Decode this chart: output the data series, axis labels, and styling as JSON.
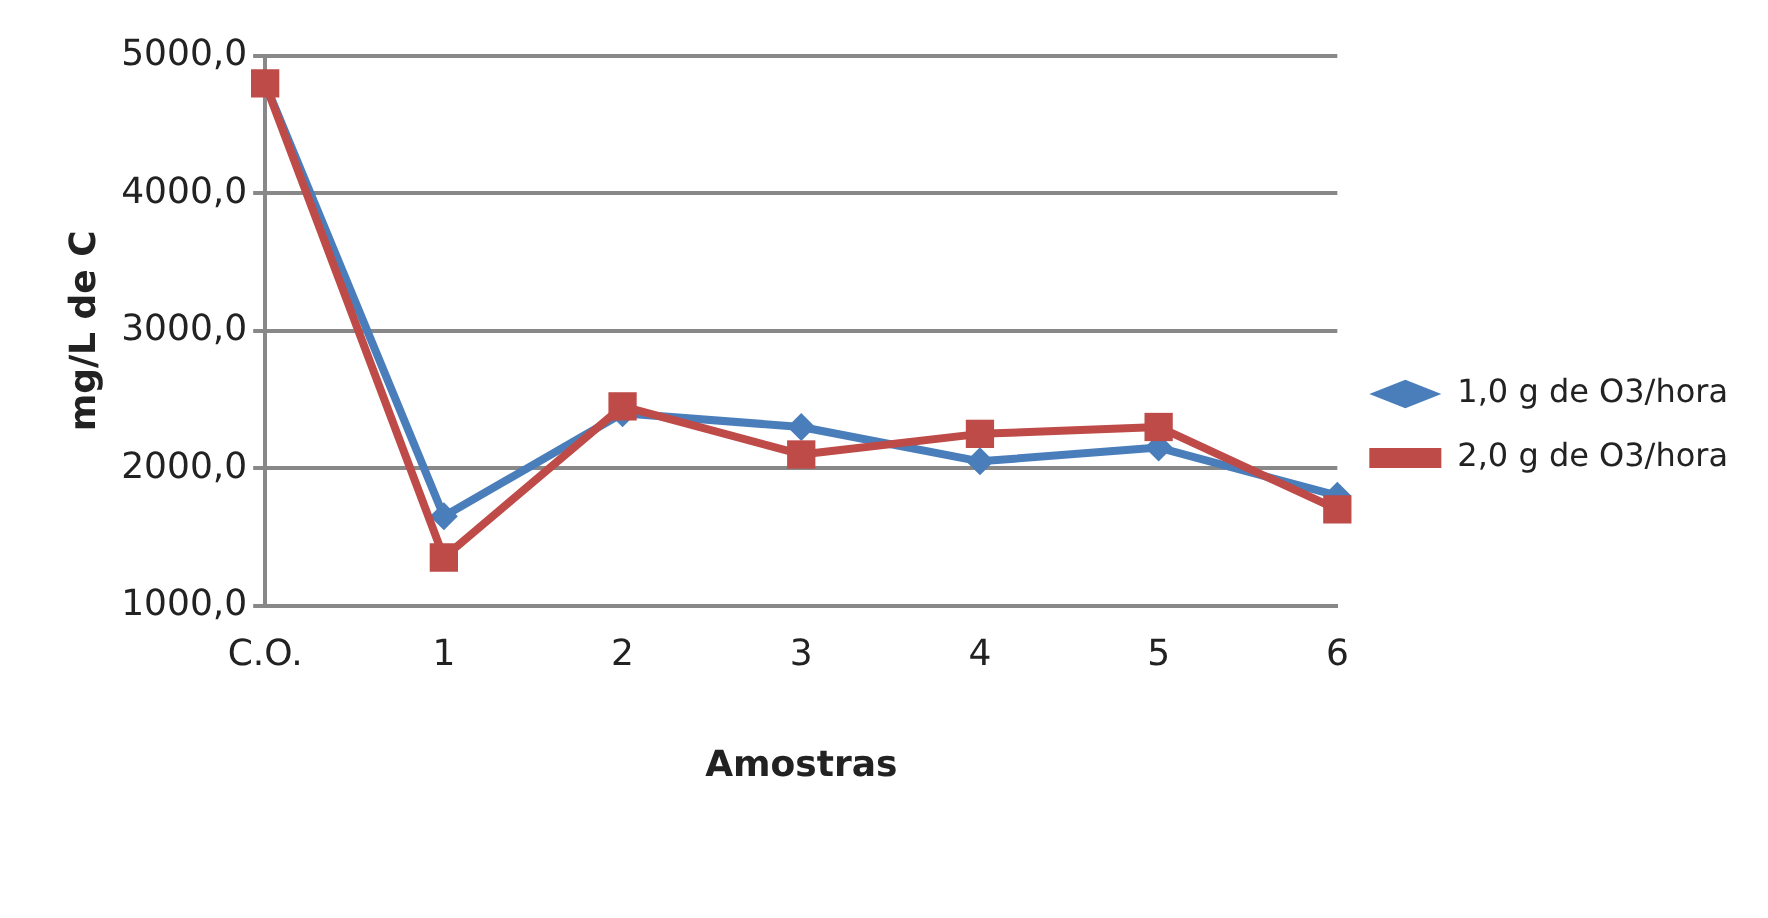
{
  "chart_data": {
    "type": "line",
    "xlabel": "Amostras",
    "ylabel": "mg/L de C",
    "categories": [
      "C.O.",
      "1",
      "2",
      "3",
      "4",
      "5",
      "6"
    ],
    "series": [
      {
        "name": "1,0 g de O3/hora",
        "color": "#4a7ebb",
        "marker": "diamond",
        "values": [
          4800,
          1650,
          2400,
          2300,
          2050,
          2150,
          1800
        ]
      },
      {
        "name": "2,0 g de O3/hora",
        "color": "#be4b48",
        "marker": "square",
        "values": [
          4800,
          1350,
          2450,
          2100,
          2250,
          2300,
          1700
        ]
      }
    ],
    "ylim": [
      1000,
      5000
    ],
    "yticks": [
      {
        "value": 1000,
        "label": "1000,0"
      },
      {
        "value": 2000,
        "label": "2000,0"
      },
      {
        "value": 3000,
        "label": "3000,0"
      },
      {
        "value": 4000,
        "label": "4000,0"
      },
      {
        "value": 5000,
        "label": "5000,0"
      }
    ],
    "grid": "y",
    "legend": "right",
    "line_style": "solid"
  }
}
